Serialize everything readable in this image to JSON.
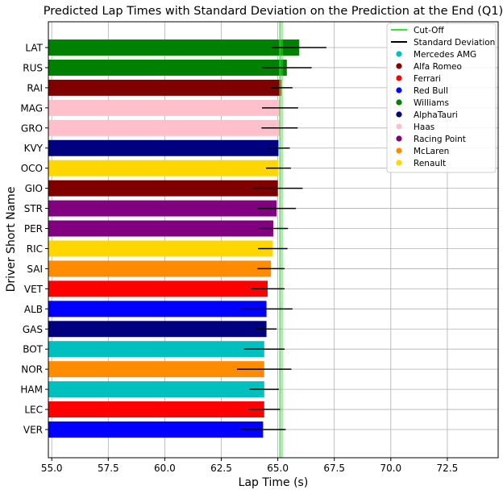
{
  "chart_data": {
    "type": "bar",
    "orientation": "horizontal",
    "title": "Predicted Lap Times with Standard Deviation on the Prediction at the End (Q1)",
    "xlabel": "Lap Time (s)",
    "ylabel": "Driver Short Name",
    "xlim": [
      54.85,
      74.75
    ],
    "xticks": [
      "55.0",
      "57.5",
      "60.0",
      "62.5",
      "65.0",
      "67.5",
      "70.0",
      "72.5"
    ],
    "xtick_values": [
      55.0,
      57.5,
      60.0,
      62.5,
      65.0,
      67.5,
      70.0,
      72.5
    ],
    "cutoff": 65.1,
    "grid": true,
    "legend_position": "top-right",
    "legend": {
      "cutoff_label": "Cut-Off",
      "std_label": "Standard Deviation",
      "cutoff_color": "#22ee22",
      "std_color": "#000000",
      "teams": [
        {
          "name": "Mercedes AMG",
          "color": "#00bfbf"
        },
        {
          "name": "Alfa Romeo",
          "color": "#800000"
        },
        {
          "name": "Ferrari",
          "color": "#ff0000"
        },
        {
          "name": "Red Bull",
          "color": "#0000ff"
        },
        {
          "name": "Williams",
          "color": "#008000"
        },
        {
          "name": "AlphaTauri",
          "color": "#000080"
        },
        {
          "name": "Haas",
          "color": "#ffc0cb"
        },
        {
          "name": "Racing Point",
          "color": "#800080"
        },
        {
          "name": "McLaren",
          "color": "#ff8c00"
        },
        {
          "name": "Renault",
          "color": "#ffd700"
        }
      ]
    },
    "drivers": [
      {
        "name": "VER",
        "value": 64.35,
        "std": 1.0,
        "color": "#0000ff"
      },
      {
        "name": "LEC",
        "value": 64.4,
        "std": 0.7,
        "color": "#ff0000"
      },
      {
        "name": "HAM",
        "value": 64.4,
        "std": 0.65,
        "color": "#00bfbf"
      },
      {
        "name": "NOR",
        "value": 64.4,
        "std": 1.2,
        "color": "#ff8c00"
      },
      {
        "name": "BOT",
        "value": 64.4,
        "std": 0.9,
        "color": "#00bfbf"
      },
      {
        "name": "GAS",
        "value": 64.5,
        "std": 0.45,
        "color": "#000080"
      },
      {
        "name": "ALB",
        "value": 64.5,
        "std": 1.15,
        "color": "#0000ff"
      },
      {
        "name": "VET",
        "value": 64.55,
        "std": 0.75,
        "color": "#ff0000"
      },
      {
        "name": "SAI",
        "value": 64.7,
        "std": 0.6,
        "color": "#ff8c00"
      },
      {
        "name": "RIC",
        "value": 64.78,
        "std": 0.65,
        "color": "#ffd700"
      },
      {
        "name": "PER",
        "value": 64.8,
        "std": 0.65,
        "color": "#800080"
      },
      {
        "name": "STR",
        "value": 64.95,
        "std": 0.85,
        "color": "#800080"
      },
      {
        "name": "GIO",
        "value": 65.0,
        "std": 1.1,
        "color": "#800000"
      },
      {
        "name": "OCO",
        "value": 65.03,
        "std": 0.55,
        "color": "#ffd700"
      },
      {
        "name": "KVY",
        "value": 65.03,
        "std": 0.5,
        "color": "#000080"
      },
      {
        "name": "GRO",
        "value": 65.08,
        "std": 0.8,
        "color": "#ffc0cb"
      },
      {
        "name": "MAG",
        "value": 65.1,
        "std": 0.8,
        "color": "#ffc0cb"
      },
      {
        "name": "RAI",
        "value": 65.15,
        "std": 0.5,
        "color": "#800000"
      },
      {
        "name": "RUS",
        "value": 65.4,
        "std": 1.1,
        "color": "#008000"
      },
      {
        "name": "LAT",
        "value": 65.95,
        "std": 1.2,
        "color": "#008000"
      }
    ]
  }
}
